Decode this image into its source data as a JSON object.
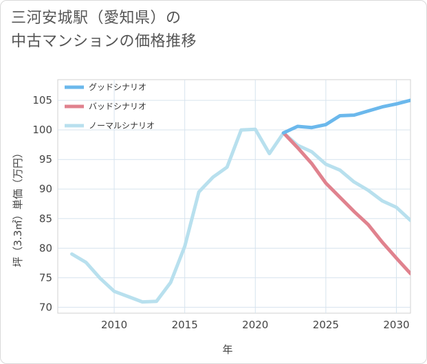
{
  "title_line1": "三河安城駅（愛知県）の",
  "title_line2": "中古マンションの価格推移",
  "chart_data": {
    "type": "line",
    "xlabel": "年",
    "ylabel": "坪（3.3㎡）単価（万円）",
    "xlim": [
      2006,
      2031
    ],
    "ylim": [
      69,
      108.5
    ],
    "xticks": [
      2010,
      2015,
      2020,
      2025,
      2030
    ],
    "yticks": [
      70,
      75,
      80,
      85,
      90,
      95,
      100,
      105
    ],
    "grid": true,
    "legend_position": "top-left",
    "series": [
      {
        "name": "グッドシナリオ",
        "color": "#6bb8ec",
        "points": [
          [
            2022,
            99.5
          ],
          [
            2023,
            100.6
          ],
          [
            2024,
            100.4
          ],
          [
            2025,
            100.9
          ],
          [
            2026,
            102.4
          ],
          [
            2027,
            102.5
          ],
          [
            2028,
            103.2
          ],
          [
            2029,
            103.9
          ],
          [
            2030,
            104.4
          ],
          [
            2031,
            105.0
          ]
        ]
      },
      {
        "name": "バッドシナリオ",
        "color": "#e0828e",
        "points": [
          [
            2022,
            99.5
          ],
          [
            2023,
            97.0
          ],
          [
            2024,
            94.3
          ],
          [
            2025,
            91.0
          ],
          [
            2026,
            88.6
          ],
          [
            2027,
            86.2
          ],
          [
            2028,
            84.0
          ],
          [
            2029,
            81.0
          ],
          [
            2030,
            78.3
          ],
          [
            2031,
            75.7
          ]
        ]
      },
      {
        "name": "ノーマルシナリオ",
        "color": "#b8e0ee",
        "points": [
          [
            2007,
            79.0
          ],
          [
            2008,
            77.6
          ],
          [
            2009,
            74.9
          ],
          [
            2010,
            72.7
          ],
          [
            2011,
            71.8
          ],
          [
            2012,
            70.9
          ],
          [
            2013,
            71.0
          ],
          [
            2014,
            74.2
          ],
          [
            2015,
            80.3
          ],
          [
            2016,
            89.5
          ],
          [
            2017,
            92.0
          ],
          [
            2018,
            93.7
          ],
          [
            2019,
            100.0
          ],
          [
            2020,
            100.1
          ],
          [
            2021,
            96.0
          ],
          [
            2022,
            99.5
          ],
          [
            2023,
            97.4
          ],
          [
            2024,
            96.3
          ],
          [
            2025,
            94.2
          ],
          [
            2026,
            93.2
          ],
          [
            2027,
            91.2
          ],
          [
            2028,
            89.8
          ],
          [
            2029,
            88.0
          ],
          [
            2030,
            86.9
          ],
          [
            2031,
            84.7
          ]
        ]
      }
    ]
  }
}
